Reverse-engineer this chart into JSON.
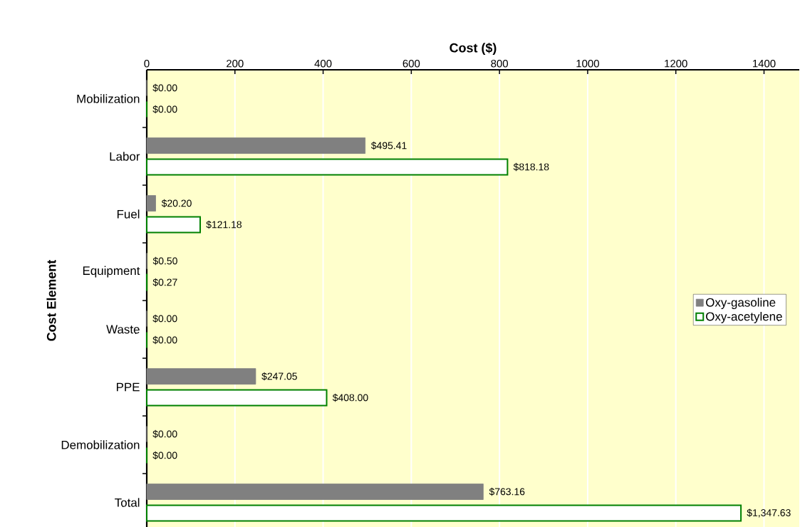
{
  "chart_data": {
    "type": "bar",
    "orientation": "horizontal",
    "xlabel": "Cost ($)",
    "ylabel": "Cost Element",
    "categories": [
      "Mobilization",
      "Labor",
      "Fuel",
      "Equipment",
      "Waste",
      "PPE",
      "Demobilization",
      "Total"
    ],
    "series": [
      {
        "name": "Oxy-gasoline",
        "color": "#808080",
        "values": [
          0,
          495.41,
          20.2,
          0.5,
          0,
          247.05,
          0,
          763.16
        ],
        "value_labels": [
          "$0.00",
          "$495.41",
          "$20.20",
          "$0.50",
          "$0.00",
          "$247.05",
          "$0.00",
          "$763.16"
        ]
      },
      {
        "name": "Oxy-acetylene",
        "color": "#008000",
        "values": [
          0,
          818.18,
          121.18,
          0.27,
          0,
          408.0,
          0,
          1347.63
        ],
        "value_labels": [
          "$0.00",
          "$818.18",
          "$121.18",
          "$0.27",
          "$0.00",
          "$408.00",
          "$0.00",
          "$1,347.63"
        ]
      }
    ],
    "xlim": [
      0,
      1480
    ],
    "xticks": [
      0,
      200,
      400,
      600,
      800,
      1000,
      1200,
      1400
    ],
    "grid": "x",
    "legend": "right"
  }
}
